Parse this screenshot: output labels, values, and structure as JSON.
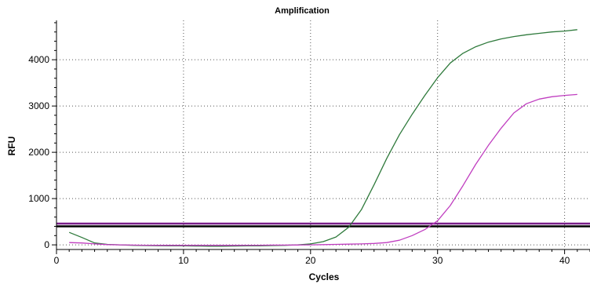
{
  "chart_data": {
    "type": "line",
    "title": "Amplification",
    "xlabel": "Cycles",
    "ylabel": "RFU",
    "xlim": [
      0,
      42
    ],
    "ylim": [
      -100,
      4850
    ],
    "x_ticks": [
      0,
      10,
      20,
      30,
      40
    ],
    "y_ticks": [
      0,
      1000,
      2000,
      3000,
      4000
    ],
    "x_tick_labels": [
      "0",
      "10",
      "20",
      "30",
      "40"
    ],
    "y_tick_labels": [
      "0",
      "1000",
      "2000",
      "3000",
      "4000"
    ],
    "grid": "dotted",
    "legend": "none",
    "series": [
      {
        "color": "#2f7a3c",
        "x": [
          1,
          2,
          3,
          4,
          5,
          6,
          7,
          8,
          9,
          10,
          11,
          12,
          13,
          14,
          15,
          16,
          17,
          18,
          19,
          20,
          21,
          22,
          23,
          24,
          25,
          26,
          27,
          28,
          29,
          30,
          31,
          32,
          33,
          34,
          35,
          36,
          37,
          38,
          39,
          40,
          41
        ],
        "values": [
          270,
          160,
          40,
          10,
          0,
          -10,
          -15,
          -18,
          -20,
          -22,
          -25,
          -28,
          -28,
          -25,
          -22,
          -20,
          -15,
          -10,
          0,
          20,
          70,
          170,
          380,
          760,
          1300,
          1870,
          2380,
          2820,
          3230,
          3610,
          3930,
          4140,
          4280,
          4380,
          4450,
          4500,
          4540,
          4570,
          4600,
          4620,
          4650
        ]
      },
      {
        "color": "#c03ec0",
        "x": [
          1,
          2,
          3,
          4,
          5,
          6,
          7,
          8,
          9,
          10,
          11,
          12,
          13,
          14,
          15,
          16,
          17,
          18,
          19,
          20,
          21,
          22,
          23,
          24,
          25,
          26,
          27,
          28,
          29,
          30,
          31,
          32,
          33,
          34,
          35,
          36,
          37,
          38,
          39,
          40,
          41
        ],
        "values": [
          50,
          40,
          20,
          5,
          0,
          -5,
          -8,
          -10,
          -10,
          -10,
          -10,
          -10,
          -10,
          -10,
          -8,
          -8,
          -5,
          -5,
          -3,
          0,
          5,
          10,
          15,
          20,
          30,
          50,
          100,
          200,
          330,
          520,
          850,
          1280,
          1740,
          2150,
          2520,
          2850,
          3050,
          3150,
          3200,
          3230,
          3250
        ]
      }
    ],
    "threshold_lines": [
      {
        "y": 460,
        "color": "#7a1f8a"
      },
      {
        "y": 400,
        "color": "#000000"
      }
    ]
  }
}
